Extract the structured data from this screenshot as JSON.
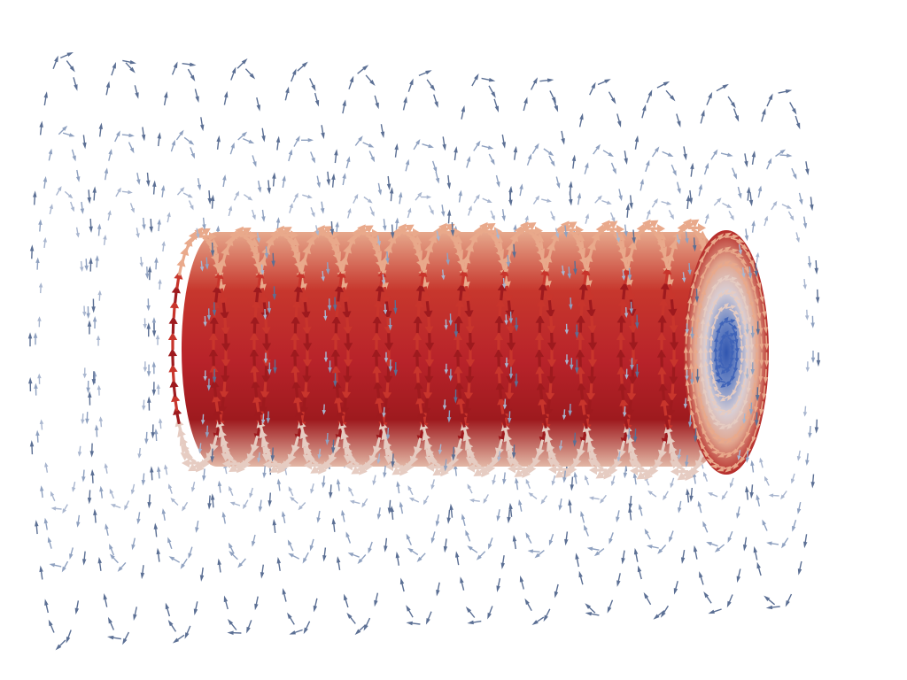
{
  "scene": {
    "subject": "vector-field-glyphs",
    "core_ring_count": 13,
    "field_ring_count": 13,
    "palette": {
      "background": "#ffffff",
      "field_outer": "#5b6f94",
      "field_mid": "#8fa1c0",
      "core_dark": "#9e1a1e",
      "core_mid": "#c8352c",
      "core_light": "#e9a98b",
      "core_pale": "#e6ccc2",
      "center_blue": "#3f63b8"
    }
  }
}
